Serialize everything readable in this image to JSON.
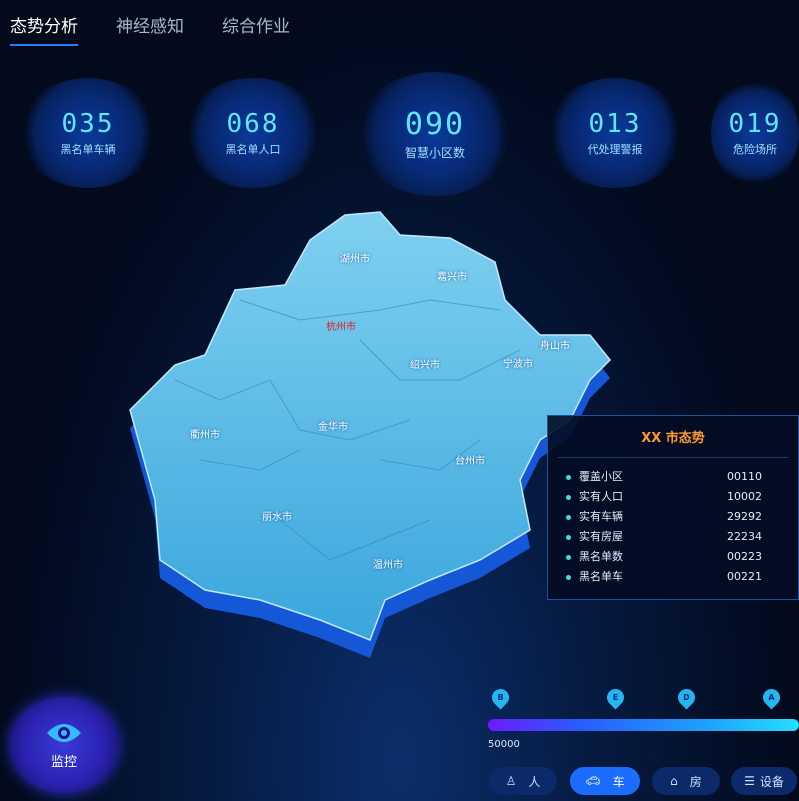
{
  "tabs": [
    {
      "label": "态势分析",
      "active": true
    },
    {
      "label": "神经感知"
    },
    {
      "label": "综合作业"
    }
  ],
  "stats": [
    {
      "value": "035",
      "label": "黑名单车辆"
    },
    {
      "value": "068",
      "label": "黑名单人口"
    },
    {
      "value": "090",
      "label": "智慧小区数"
    },
    {
      "value": "013",
      "label": "代处理警报"
    },
    {
      "value": "019",
      "label": "危险场所"
    }
  ],
  "map": {
    "cities": [
      "湖州市",
      "嘉兴市",
      "杭州市",
      "舟山市",
      "绍兴市",
      "宁波市",
      "衢州市",
      "金华市",
      "台州市",
      "丽水市",
      "温州市"
    ],
    "highlight": "杭州市",
    "highlight_color": "#e02020"
  },
  "panel": {
    "title": "XX 市态势",
    "rows": [
      {
        "label": "覆盖小区",
        "value": "00110"
      },
      {
        "label": "实有人口",
        "value": "10002"
      },
      {
        "label": "实有车辆",
        "value": "29292"
      },
      {
        "label": "实有房屋",
        "value": "22234"
      },
      {
        "label": "黑名单数",
        "value": "00223"
      },
      {
        "label": "黑名单车",
        "value": "00221"
      }
    ]
  },
  "monitor": {
    "label": "监控",
    "icon": "eye-icon"
  },
  "timeline": {
    "markers": [
      "B",
      "E",
      "D",
      "A"
    ],
    "scale_label": "50000"
  },
  "filters": [
    {
      "label": "人",
      "icon": "person-icon"
    },
    {
      "label": "车",
      "icon": "car-icon",
      "active": true
    },
    {
      "label": "房",
      "icon": "house-icon"
    },
    {
      "label": "设备",
      "icon": "device-icon"
    }
  ]
}
